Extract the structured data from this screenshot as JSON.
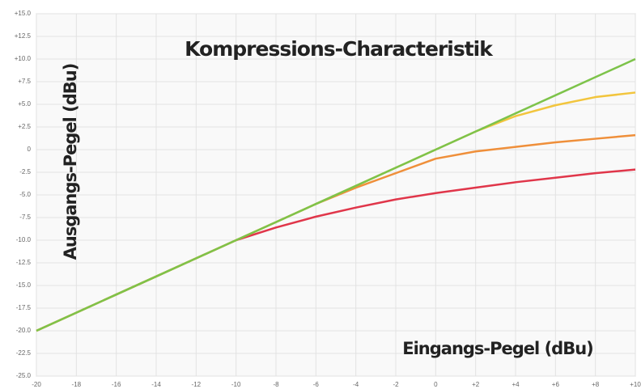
{
  "chart_data": {
    "type": "line",
    "title": "Kompressions-Characteristik",
    "y_label": "Ausgangs-Pegel (dBu)",
    "x_label": "Eingangs-Pegel (dBu)",
    "x": [
      -20,
      -18,
      -16,
      -14,
      -12,
      -10,
      -8,
      -6,
      -4,
      -2,
      0,
      2,
      4,
      6,
      8,
      10
    ],
    "series": [
      {
        "color": "#e0364a",
        "values": [
          -20,
          -18,
          -16,
          -14,
          -12,
          -10,
          -8.6,
          -7.4,
          -6.4,
          -5.5,
          -4.8,
          -4.2,
          -3.6,
          -3.1,
          -2.6,
          -2.2
        ]
      },
      {
        "color": "#ef8f3a",
        "values": [
          -20,
          -18,
          -16,
          -14,
          -12,
          -10,
          -8,
          -6,
          -4.2,
          -2.6,
          -1.0,
          -0.2,
          0.3,
          0.8,
          1.2,
          1.6
        ]
      },
      {
        "color": "#f2c53d",
        "values": [
          -20,
          -18,
          -16,
          -14,
          -12,
          -10,
          -8,
          -6,
          -4,
          -2,
          0,
          2,
          3.7,
          4.9,
          5.8,
          6.3
        ]
      },
      {
        "color": "#7dc34a",
        "values": [
          -20,
          -18,
          -16,
          -14,
          -12,
          -10,
          -8,
          -6,
          -4,
          -2,
          0,
          2,
          4,
          6,
          8,
          10
        ]
      }
    ],
    "xlim": [
      -20,
      10
    ],
    "ylim": [
      -25,
      15
    ],
    "xticks": [
      -20,
      -18,
      -16,
      -14,
      -12,
      -10,
      -8,
      -6,
      -4,
      -2,
      0,
      {
        "value": 2,
        "label": "+2"
      },
      {
        "value": 4,
        "label": "+4"
      },
      {
        "value": 6,
        "label": "+6"
      },
      {
        "value": 8,
        "label": "+8"
      },
      {
        "value": 10,
        "label": "+10"
      }
    ],
    "yticks": [
      {
        "value": -25,
        "label": "-25.0"
      },
      {
        "value": -22.5,
        "label": "-22.5"
      },
      {
        "value": -20,
        "label": "-20.0"
      },
      {
        "value": -17.5,
        "label": "-17.5"
      },
      {
        "value": -15,
        "label": "-15.0"
      },
      {
        "value": -12.5,
        "label": "-12.5"
      },
      {
        "value": -10,
        "label": "-10.0"
      },
      {
        "value": -7.5,
        "label": "-7.5"
      },
      {
        "value": -5,
        "label": "-5.0"
      },
      {
        "value": -2.5,
        "label": "-2.5"
      },
      0,
      {
        "value": 2.5,
        "label": "+2.5"
      },
      {
        "value": 5,
        "label": "+5.0"
      },
      {
        "value": 7.5,
        "label": "+7.5"
      },
      {
        "value": 10,
        "label": "+10.0"
      },
      {
        "value": 12.5,
        "label": "+12.5"
      },
      {
        "value": 15,
        "label": "+15.0"
      }
    ],
    "grid": true
  }
}
